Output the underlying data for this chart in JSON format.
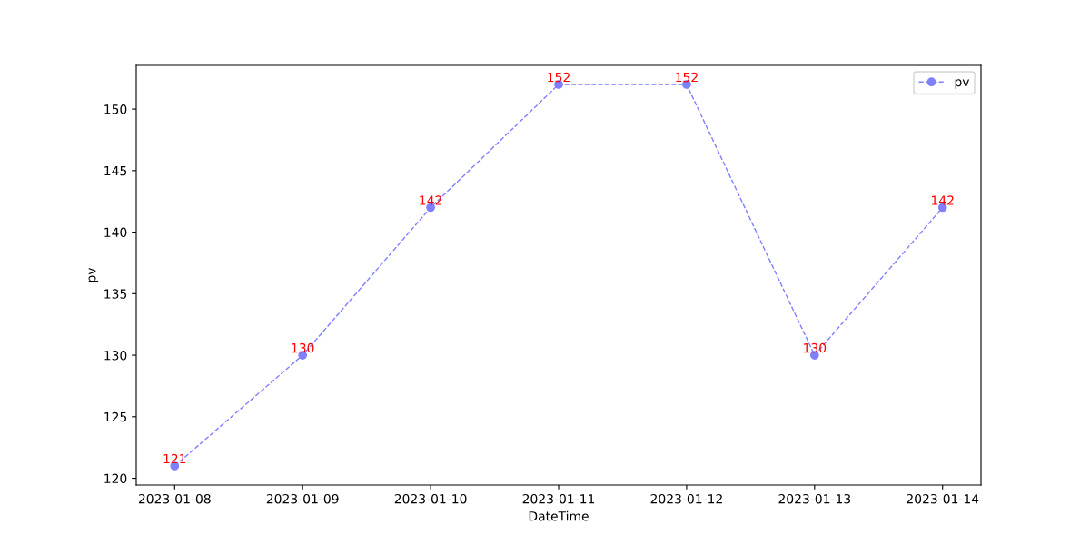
{
  "chart_data": {
    "type": "line",
    "xlabel": "DateTime",
    "ylabel": "pv",
    "x": [
      "2023-01-08",
      "2023-01-09",
      "2023-01-10",
      "2023-01-11",
      "2023-01-12",
      "2023-01-13",
      "2023-01-14"
    ],
    "series": [
      {
        "name": "pv",
        "color": "#7f7fff",
        "values": [
          121,
          130,
          142,
          152,
          152,
          130,
          142
        ]
      }
    ],
    "xlim": [
      "2023-01-07T16:48",
      "2023-01-14T07:12"
    ],
    "xticks": [
      "2023-01-08",
      "2023-01-09",
      "2023-01-10",
      "2023-01-11",
      "2023-01-12",
      "2023-01-13",
      "2023-01-14"
    ],
    "ylim": [
      119.45,
      153.55
    ],
    "yticks": [
      120,
      125,
      130,
      135,
      140,
      145,
      150
    ],
    "data_labels": true,
    "grid": false,
    "legend": "top right",
    "marker": "circle",
    "line_style": "dashed"
  }
}
